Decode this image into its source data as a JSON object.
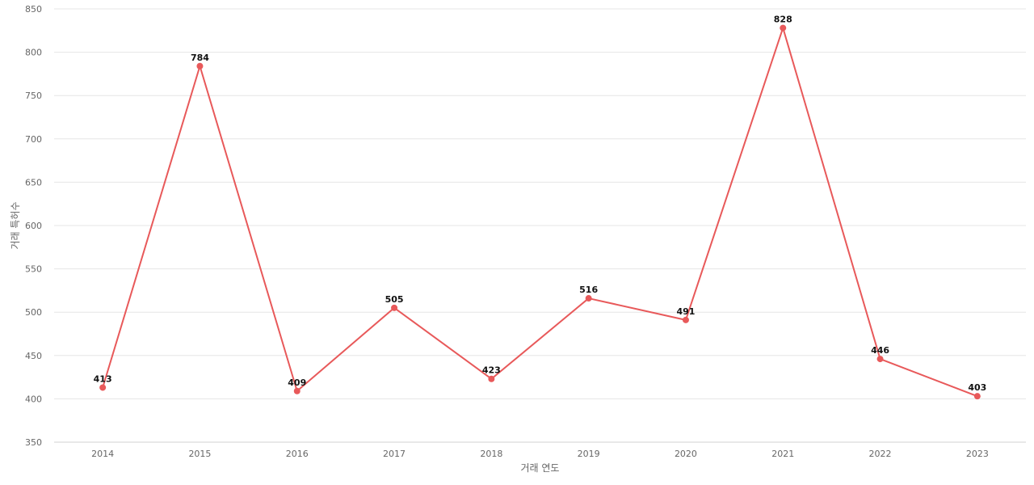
{
  "chart_data": {
    "type": "line",
    "x": [
      "2014",
      "2015",
      "2016",
      "2017",
      "2018",
      "2019",
      "2020",
      "2021",
      "2022",
      "2023"
    ],
    "series": [
      {
        "values": [
          413,
          784,
          409,
          505,
          423,
          516,
          491,
          828,
          446,
          403
        ]
      }
    ],
    "title": "",
    "xlabel": "거래 연도",
    "ylabel": "거래 특허수",
    "ylim": [
      350,
      850
    ],
    "yticks": [
      350,
      400,
      450,
      500,
      550,
      600,
      650,
      700,
      750,
      800,
      850
    ],
    "grid": true,
    "data_labels": true,
    "line_color": "#e8595a"
  }
}
